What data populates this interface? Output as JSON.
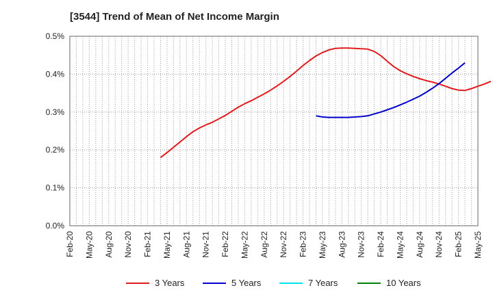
{
  "chart_data": {
    "type": "line",
    "title": "[3544]  Trend of Mean of Net Income Margin",
    "xlabel": "",
    "ylabel": "",
    "ylim": [
      0,
      0.5
    ],
    "y_ticks": [
      "0.0%",
      "0.1%",
      "0.2%",
      "0.3%",
      "0.4%",
      "0.5%"
    ],
    "x_ticks": [
      "Feb-20",
      "May-20",
      "Aug-20",
      "Nov-20",
      "Feb-21",
      "May-21",
      "Aug-21",
      "Nov-21",
      "Feb-22",
      "May-22",
      "Aug-22",
      "Nov-22",
      "Feb-23",
      "May-23",
      "Aug-23",
      "Nov-23",
      "Feb-24",
      "May-24",
      "Aug-24",
      "Nov-24",
      "Feb-25",
      "May-25"
    ],
    "grid": true,
    "legend_position": "bottom",
    "series": [
      {
        "name": "3 Years",
        "color": "#e31a1c",
        "start": "Apr-21",
        "values": [
          0.18,
          0.193,
          0.207,
          0.221,
          0.235,
          0.248,
          0.258,
          0.266,
          0.273,
          0.282,
          0.291,
          0.302,
          0.313,
          0.322,
          0.33,
          0.339,
          0.348,
          0.358,
          0.369,
          0.381,
          0.394,
          0.408,
          0.423,
          0.436,
          0.448,
          0.457,
          0.464,
          0.468,
          0.469,
          0.469,
          0.468,
          0.467,
          0.466,
          0.46,
          0.449,
          0.434,
          0.42,
          0.409,
          0.401,
          0.394,
          0.388,
          0.383,
          0.379,
          0.374,
          0.368,
          0.362,
          0.358,
          0.357,
          0.362,
          0.368,
          0.374,
          0.381
        ]
      },
      {
        "name": "5 Years",
        "color": "#0000cc",
        "start": "Apr-23",
        "values": [
          0.29,
          0.287,
          0.286,
          0.286,
          0.286,
          0.286,
          0.287,
          0.288,
          0.29,
          0.295,
          0.3,
          0.306,
          0.312,
          0.319,
          0.326,
          0.334,
          0.342,
          0.352,
          0.363,
          0.375,
          0.389,
          0.403,
          0.416,
          0.43
        ]
      },
      {
        "name": "7 Years",
        "color": "#00e5ee",
        "start": "",
        "values": []
      },
      {
        "name": "10 Years",
        "color": "#008000",
        "start": "",
        "values": []
      }
    ]
  }
}
